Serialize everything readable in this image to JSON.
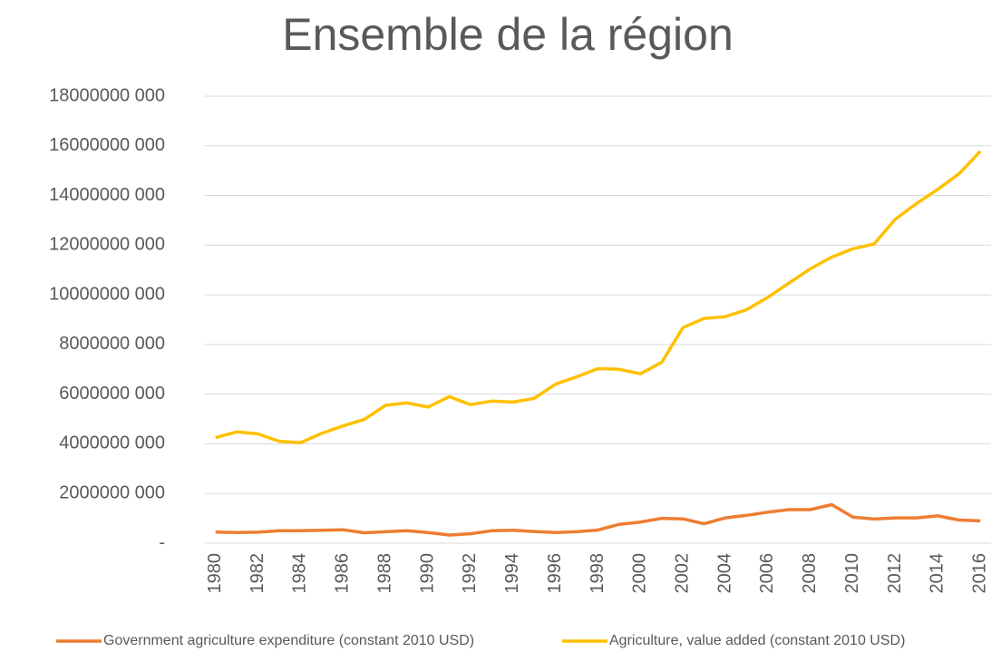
{
  "chart_data": {
    "type": "line",
    "title": "Ensemble de la région",
    "x": [
      1980,
      1981,
      1982,
      1983,
      1984,
      1985,
      1986,
      1987,
      1988,
      1989,
      1990,
      1991,
      1992,
      1993,
      1994,
      1995,
      1996,
      1997,
      1998,
      1999,
      2000,
      2001,
      2002,
      2003,
      2004,
      2005,
      2006,
      2007,
      2008,
      2009,
      2010,
      2011,
      2012,
      2013,
      2014,
      2015,
      2016
    ],
    "xlim": [
      1979.5,
      2016.5
    ],
    "xticks": [
      1980,
      1982,
      1984,
      1986,
      1988,
      1990,
      1992,
      1994,
      1996,
      1998,
      2000,
      2002,
      2004,
      2006,
      2008,
      2010,
      2012,
      2014,
      2016
    ],
    "ylim": [
      0,
      18000000000
    ],
    "yticks": [
      {
        "value": 0,
        "label": "-"
      },
      {
        "value": 2000000000,
        "label": "2000000 000"
      },
      {
        "value": 4000000000,
        "label": "4000000 000"
      },
      {
        "value": 6000000000,
        "label": "6000000 000"
      },
      {
        "value": 8000000000,
        "label": "8000000 000"
      },
      {
        "value": 10000000000,
        "label": "10000000 000"
      },
      {
        "value": 12000000000,
        "label": "12000000 000"
      },
      {
        "value": 14000000000,
        "label": "14000000 000"
      },
      {
        "value": 16000000000,
        "label": "16000000 000"
      },
      {
        "value": 18000000000,
        "label": "18000000 000"
      }
    ],
    "grid": true,
    "legend": "bottom",
    "series": [
      {
        "name": "Government agriculture expenditure (constant 2010 USD)",
        "color": "#ed7d31",
        "values": [
          450000000,
          430000000,
          440000000,
          500000000,
          500000000,
          520000000,
          540000000,
          420000000,
          460000000,
          500000000,
          430000000,
          330000000,
          380000000,
          500000000,
          520000000,
          470000000,
          430000000,
          460000000,
          530000000,
          760000000,
          850000000,
          1000000000,
          980000000,
          780000000,
          1020000000,
          1120000000,
          1250000000,
          1350000000,
          1350000000,
          1550000000,
          1050000000,
          970000000,
          1020000000,
          1020000000,
          1100000000,
          930000000,
          900000000
        ]
      },
      {
        "name": "Agriculture, value added (constant 2010 USD)",
        "color": "#ffc000",
        "values": [
          4250000000,
          4480000000,
          4400000000,
          4100000000,
          4050000000,
          4420000000,
          4720000000,
          4980000000,
          5550000000,
          5650000000,
          5480000000,
          5900000000,
          5580000000,
          5720000000,
          5680000000,
          5830000000,
          6400000000,
          6700000000,
          7030000000,
          7000000000,
          6820000000,
          7280000000,
          8680000000,
          9050000000,
          9120000000,
          9400000000,
          9900000000,
          10480000000,
          11050000000,
          11520000000,
          11850000000,
          12050000000,
          13050000000,
          13680000000,
          14250000000,
          14880000000,
          15780000000
        ]
      }
    ]
  }
}
